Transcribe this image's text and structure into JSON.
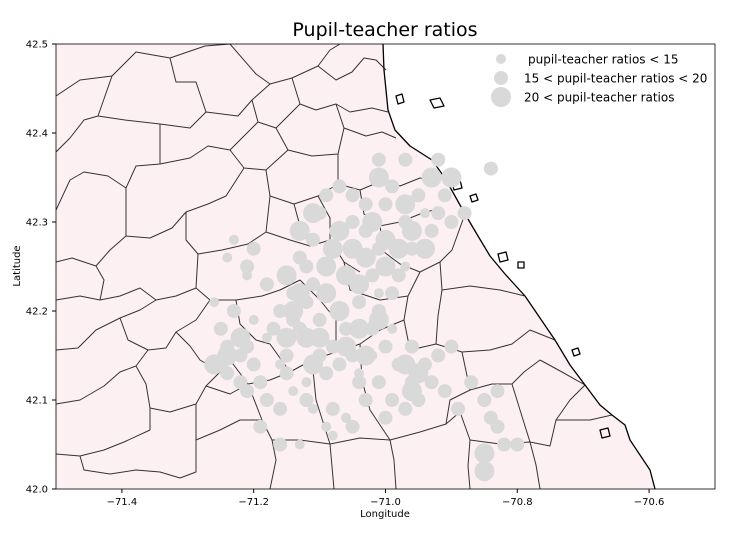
{
  "chart_data": {
    "type": "scatter",
    "title": "Pupil-teacher ratios",
    "xlabel": "Longitude",
    "ylabel": "Latitude",
    "xlim": [
      -71.5,
      -70.5
    ],
    "ylim": [
      42.0,
      42.5
    ],
    "xticks": [
      -71.4,
      -71.2,
      -71.0,
      -70.8,
      -70.6
    ],
    "xtick_labels": [
      "−71.4",
      "−71.2",
      "−71.0",
      "−70.8",
      "−70.6"
    ],
    "yticks": [
      42.0,
      42.1,
      42.2,
      42.3,
      42.4,
      42.5
    ],
    "ytick_labels": [
      "42.0",
      "42.1",
      "42.2",
      "42.3",
      "42.4",
      "42.5"
    ],
    "grid": false,
    "legend_position": "top-right",
    "colors": {
      "land": "#fdf0f3",
      "points": "#d9d9d9",
      "boundaries": "#333333"
    },
    "series": [
      {
        "name": "pupil-teacher ratios < 15",
        "size_class": "small",
        "points": [
          [
            -71.23,
            42.28
          ],
          [
            -71.24,
            42.26
          ],
          [
            -71.18,
            42.17
          ],
          [
            -71.2,
            42.19
          ],
          [
            -71.14,
            42.11
          ],
          [
            -71.12,
            42.12
          ],
          [
            -71.09,
            42.07
          ],
          [
            -71.08,
            42.06
          ],
          [
            -71.06,
            42.08
          ],
          [
            -71.04,
            42.13
          ],
          [
            -71.02,
            42.15
          ],
          [
            -70.99,
            42.18
          ],
          [
            -71.01,
            42.22
          ],
          [
            -70.97,
            42.25
          ],
          [
            -71.16,
            42.14
          ],
          [
            -71.11,
            42.09
          ],
          [
            -70.94,
            42.31
          ],
          [
            -71.26,
            42.21
          ],
          [
            -71.21,
            42.24
          ],
          [
            -71.13,
            42.05
          ]
        ]
      },
      {
        "name": "15 < pupil-teacher ratios < 20",
        "size_class": "medium",
        "points": [
          [
            -71.2,
            42.27
          ],
          [
            -71.21,
            42.25
          ],
          [
            -71.18,
            42.23
          ],
          [
            -71.25,
            42.18
          ],
          [
            -71.24,
            42.16
          ],
          [
            -71.22,
            42.15
          ],
          [
            -71.21,
            42.16
          ],
          [
            -71.2,
            42.14
          ],
          [
            -71.19,
            42.12
          ],
          [
            -71.18,
            42.1
          ],
          [
            -71.21,
            42.11
          ],
          [
            -71.19,
            42.07
          ],
          [
            -71.16,
            42.09
          ],
          [
            -71.16,
            42.05
          ],
          [
            -71.15,
            42.13
          ],
          [
            -71.15,
            42.15
          ],
          [
            -71.13,
            42.18
          ],
          [
            -71.12,
            42.21
          ],
          [
            -71.12,
            42.25
          ],
          [
            -71.11,
            42.28
          ],
          [
            -71.1,
            42.31
          ],
          [
            -71.09,
            42.33
          ],
          [
            -71.07,
            42.34
          ],
          [
            -71.05,
            42.33
          ],
          [
            -71.05,
            42.3
          ],
          [
            -71.03,
            42.32
          ],
          [
            -71.03,
            42.29
          ],
          [
            -71.01,
            42.27
          ],
          [
            -71.0,
            42.32
          ],
          [
            -70.99,
            42.34
          ],
          [
            -70.97,
            42.3
          ],
          [
            -70.96,
            42.27
          ],
          [
            -70.95,
            42.33
          ],
          [
            -70.93,
            42.29
          ],
          [
            -70.92,
            42.31
          ],
          [
            -70.91,
            42.33
          ],
          [
            -70.9,
            42.3
          ],
          [
            -70.88,
            42.31
          ],
          [
            -71.02,
            42.24
          ],
          [
            -71.04,
            42.21
          ],
          [
            -71.06,
            42.18
          ],
          [
            -71.08,
            42.16
          ],
          [
            -71.07,
            42.14
          ],
          [
            -71.09,
            42.13
          ],
          [
            -71.1,
            42.15
          ],
          [
            -71.1,
            42.19
          ],
          [
            -71.11,
            42.23
          ],
          [
            -71.13,
            42.26
          ],
          [
            -71.14,
            42.22
          ],
          [
            -71.14,
            42.19
          ],
          [
            -71.16,
            42.2
          ],
          [
            -71.17,
            42.18
          ],
          [
            -71.02,
            42.18
          ],
          [
            -71.01,
            42.2
          ],
          [
            -70.99,
            42.22
          ],
          [
            -70.98,
            42.24
          ],
          [
            -71.0,
            42.16
          ],
          [
            -70.98,
            42.14
          ],
          [
            -70.96,
            42.12
          ],
          [
            -70.95,
            42.1
          ],
          [
            -70.97,
            42.09
          ],
          [
            -70.99,
            42.1
          ],
          [
            -71.01,
            42.12
          ],
          [
            -71.03,
            42.1
          ],
          [
            -71.04,
            42.12
          ],
          [
            -71.05,
            42.15
          ],
          [
            -70.94,
            42.14
          ],
          [
            -70.96,
            42.16
          ],
          [
            -70.93,
            42.12
          ],
          [
            -70.92,
            42.15
          ],
          [
            -70.9,
            42.16
          ],
          [
            -70.91,
            42.11
          ],
          [
            -70.89,
            42.09
          ],
          [
            -70.87,
            42.12
          ],
          [
            -70.85,
            42.1
          ],
          [
            -70.84,
            42.08
          ],
          [
            -70.83,
            42.11
          ],
          [
            -70.83,
            42.07
          ],
          [
            -70.82,
            42.05
          ],
          [
            -70.8,
            42.05
          ],
          [
            -70.97,
            42.37
          ],
          [
            -71.01,
            42.37
          ],
          [
            -70.92,
            42.37
          ],
          [
            -70.84,
            42.36
          ],
          [
            -71.08,
            42.09
          ],
          [
            -71.05,
            42.07
          ],
          [
            -71.12,
            42.1
          ],
          [
            -71.0,
            42.08
          ],
          [
            -71.24,
            42.13
          ],
          [
            -71.23,
            42.2
          ],
          [
            -71.25,
            42.14
          ],
          [
            -71.22,
            42.12
          ]
        ]
      },
      {
        "name": "20 < pupil-teacher ratios",
        "size_class": "large",
        "points": [
          [
            -71.15,
            42.24
          ],
          [
            -71.14,
            42.2
          ],
          [
            -71.12,
            42.17
          ],
          [
            -71.11,
            42.14
          ],
          [
            -71.09,
            42.22
          ],
          [
            -71.07,
            42.2
          ],
          [
            -71.06,
            42.24
          ],
          [
            -71.08,
            42.27
          ],
          [
            -71.05,
            42.27
          ],
          [
            -71.04,
            42.23
          ],
          [
            -71.03,
            42.26
          ],
          [
            -71.02,
            42.3
          ],
          [
            -71.0,
            42.28
          ],
          [
            -70.98,
            42.27
          ],
          [
            -70.96,
            42.29
          ],
          [
            -70.94,
            42.27
          ],
          [
            -70.97,
            42.32
          ],
          [
            -71.04,
            42.18
          ],
          [
            -71.03,
            42.15
          ],
          [
            -71.06,
            42.16
          ],
          [
            -71.13,
            42.22
          ],
          [
            -71.1,
            42.17
          ],
          [
            -71.09,
            42.25
          ],
          [
            -71.07,
            42.29
          ],
          [
            -71.15,
            42.17
          ],
          [
            -71.26,
            42.14
          ],
          [
            -71.24,
            42.15
          ],
          [
            -71.22,
            42.17
          ],
          [
            -70.97,
            42.14
          ],
          [
            -70.95,
            42.13
          ],
          [
            -70.96,
            42.11
          ],
          [
            -70.85,
            42.04
          ],
          [
            -70.85,
            42.02
          ],
          [
            -70.93,
            42.35
          ],
          [
            -70.9,
            42.35
          ],
          [
            -71.01,
            42.35
          ],
          [
            -71.11,
            42.31
          ],
          [
            -71.13,
            42.29
          ],
          [
            -71.0,
            42.25
          ],
          [
            -71.01,
            42.19
          ]
        ]
      }
    ]
  }
}
